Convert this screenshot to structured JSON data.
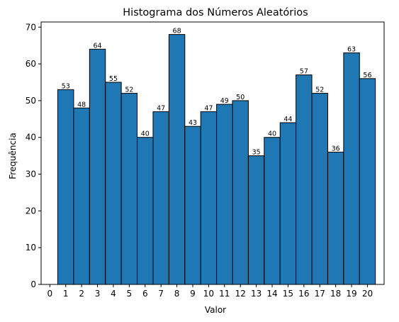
{
  "chart_data": {
    "type": "bar",
    "title": "Histograma dos Números Aleatórios",
    "xlabel": "Valor",
    "ylabel": "Frequência",
    "categories": [
      1,
      2,
      3,
      4,
      5,
      6,
      7,
      8,
      9,
      10,
      11,
      12,
      13,
      14,
      15,
      16,
      17,
      18,
      19,
      20
    ],
    "values": [
      53,
      48,
      64,
      55,
      52,
      40,
      47,
      68,
      43,
      47,
      49,
      50,
      35,
      40,
      44,
      57,
      52,
      36,
      63,
      56
    ],
    "xticks": [
      0,
      1,
      2,
      3,
      4,
      5,
      6,
      7,
      8,
      9,
      10,
      11,
      12,
      13,
      14,
      15,
      16,
      17,
      18,
      19,
      20
    ],
    "yticks": [
      0,
      10,
      20,
      30,
      40,
      50,
      60,
      70
    ],
    "xlim": [
      -0.55,
      21.05
    ],
    "ylim": [
      0,
      71.4
    ],
    "bar_color": "#1f77b4",
    "edge_color": "#000000",
    "grid": false,
    "legend": false
  }
}
